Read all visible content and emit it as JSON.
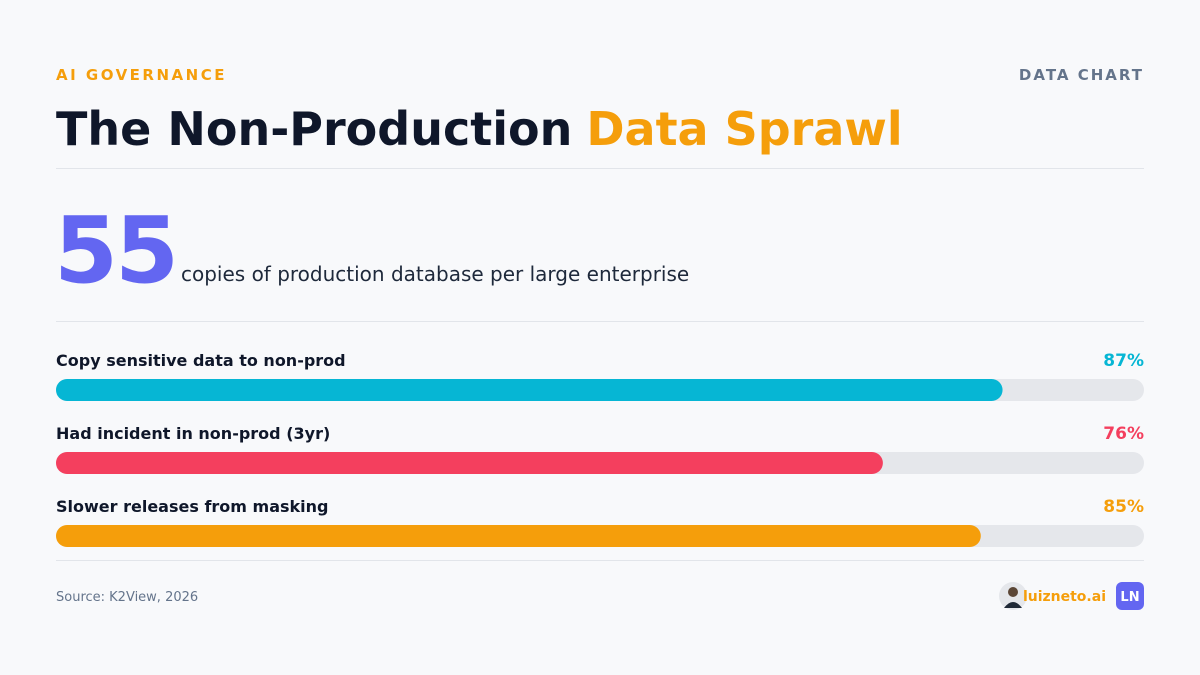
{
  "header": {
    "eyebrow": "AI GOVERNANCE",
    "tag": "DATA CHART",
    "title": "The Non-Production",
    "title_highlight": "Data Sprawl"
  },
  "stat": {
    "value": "55",
    "caption": "copies of production database per large enterprise"
  },
  "chart_data": {
    "type": "bar",
    "orientation": "horizontal",
    "categories": [
      "Copy sensitive data to non-prod",
      "Had incident in non-prod (3yr)",
      "Slower releases from masking"
    ],
    "values": [
      87,
      76,
      85
    ],
    "value_labels": [
      "87%",
      "76%",
      "85%"
    ],
    "colors": [
      "#06b6d4",
      "#f43f5e",
      "#f59e0b"
    ],
    "xlim": [
      0,
      100
    ]
  },
  "footer": {
    "source": "Source: K2View, 2026",
    "brand": "luizneto.ai",
    "badge": "LN"
  }
}
